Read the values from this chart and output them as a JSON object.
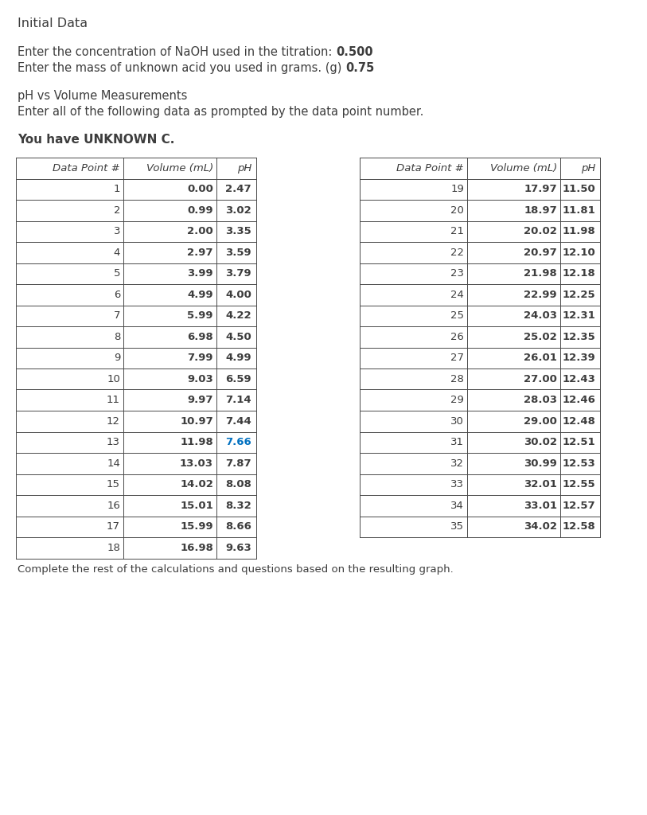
{
  "title": "Initial Data",
  "line1_normal": "Enter the concentration of NaOH used in the titration: ",
  "line1_bold": "0.500",
  "line2_normal": "Enter the mass of unknown acid you used in grams. (g) ",
  "line2_bold": "0.75",
  "section_title": "pH vs Volume Measurements",
  "section_sub": "Enter all of the following data as prompted by the data point number.",
  "unknown_label": "You have UNKNOWN C.",
  "footer": "Complete the rest of the calculations and questions based on the resulting graph.",
  "table1_headers": [
    "Data Point #",
    "Volume (mL)",
    "pH"
  ],
  "table2_headers": [
    "Data Point #",
    "Volume (mL)",
    "pH"
  ],
  "table1_data": [
    [
      1,
      "0.00",
      "2.47",
      false
    ],
    [
      2,
      "0.99",
      "3.02",
      false
    ],
    [
      3,
      "2.00",
      "3.35",
      false
    ],
    [
      4,
      "2.97",
      "3.59",
      false
    ],
    [
      5,
      "3.99",
      "3.79",
      false
    ],
    [
      6,
      "4.99",
      "4.00",
      false
    ],
    [
      7,
      "5.99",
      "4.22",
      false
    ],
    [
      8,
      "6.98",
      "4.50",
      false
    ],
    [
      9,
      "7.99",
      "4.99",
      false
    ],
    [
      10,
      "9.03",
      "6.59",
      false
    ],
    [
      11,
      "9.97",
      "7.14",
      false
    ],
    [
      12,
      "10.97",
      "7.44",
      false
    ],
    [
      13,
      "11.98",
      "7.66",
      true
    ],
    [
      14,
      "13.03",
      "7.87",
      false
    ],
    [
      15,
      "14.02",
      "8.08",
      false
    ],
    [
      16,
      "15.01",
      "8.32",
      false
    ],
    [
      17,
      "15.99",
      "8.66",
      false
    ],
    [
      18,
      "16.98",
      "9.63",
      false
    ]
  ],
  "table2_data": [
    [
      19,
      "17.97",
      "11.50",
      false
    ],
    [
      20,
      "18.97",
      "11.81",
      false
    ],
    [
      21,
      "20.02",
      "11.98",
      false
    ],
    [
      22,
      "20.97",
      "12.10",
      false
    ],
    [
      23,
      "21.98",
      "12.18",
      false
    ],
    [
      24,
      "22.99",
      "12.25",
      false
    ],
    [
      25,
      "24.03",
      "12.31",
      false
    ],
    [
      26,
      "25.02",
      "12.35",
      false
    ],
    [
      27,
      "26.01",
      "12.39",
      false
    ],
    [
      28,
      "27.00",
      "12.43",
      false
    ],
    [
      29,
      "28.03",
      "12.46",
      false
    ],
    [
      30,
      "29.00",
      "12.48",
      false
    ],
    [
      31,
      "30.02",
      "12.51",
      false
    ],
    [
      32,
      "30.99",
      "12.53",
      false
    ],
    [
      33,
      "32.01",
      "12.55",
      false
    ],
    [
      34,
      "33.01",
      "12.57",
      false
    ],
    [
      35,
      "34.02",
      "12.58",
      false
    ]
  ],
  "background_color": "#ffffff",
  "text_color": "#3d3d3d",
  "border_color": "#4a4a4a",
  "blue_color": "#0070c0",
  "fig_width": 8.13,
  "fig_height": 10.24,
  "dpi": 100
}
